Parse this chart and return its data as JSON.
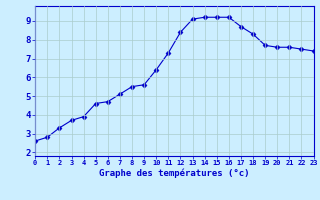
{
  "x": [
    0,
    1,
    2,
    3,
    4,
    5,
    6,
    7,
    8,
    9,
    10,
    11,
    12,
    13,
    14,
    15,
    16,
    17,
    18,
    19,
    20,
    21,
    22,
    23
  ],
  "y": [
    2.6,
    2.8,
    3.3,
    3.7,
    3.9,
    4.6,
    4.7,
    5.1,
    5.5,
    5.6,
    6.4,
    7.3,
    8.4,
    9.1,
    9.2,
    9.2,
    9.2,
    8.7,
    8.3,
    7.7,
    7.6,
    7.6,
    7.5,
    7.4
  ],
  "line_color": "#0000cc",
  "marker": "D",
  "marker_size": 2.5,
  "bg_color": "#cceeff",
  "grid_color": "#aacccc",
  "xlabel": "Graphe des températures (°c)",
  "xlabel_color": "#0000cc",
  "tick_color": "#0000cc",
  "axis_color": "#0000cc",
  "xlim": [
    0,
    23
  ],
  "ylim": [
    1.8,
    9.8
  ],
  "yticks": [
    2,
    3,
    4,
    5,
    6,
    7,
    8,
    9
  ],
  "xticks": [
    0,
    1,
    2,
    3,
    4,
    5,
    6,
    7,
    8,
    9,
    10,
    11,
    12,
    13,
    14,
    15,
    16,
    17,
    18,
    19,
    20,
    21,
    22,
    23
  ],
  "figsize": [
    3.2,
    2.0
  ],
  "dpi": 100
}
